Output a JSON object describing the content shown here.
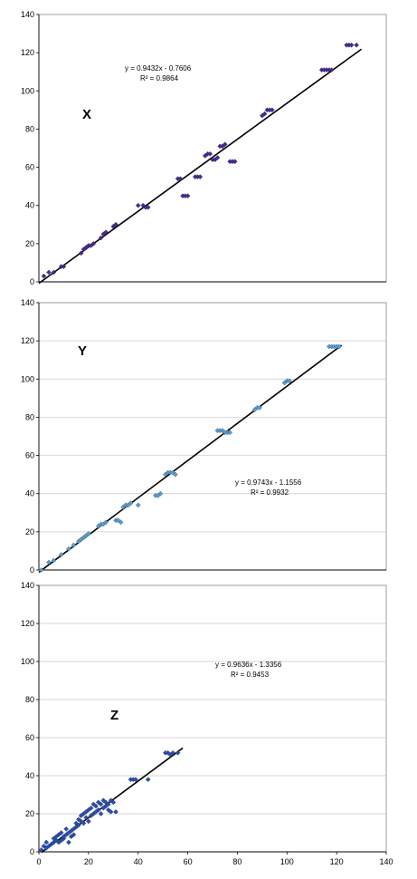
{
  "chart_data": [
    {
      "type": "scatter",
      "panel_label": "X",
      "equation": "y = 0.9432x - 0.7606",
      "r_squared": "R² = 0.9864",
      "xlim": [
        0,
        140
      ],
      "ylim": [
        0,
        140
      ],
      "y_ticks": [
        "0",
        "20",
        "40",
        "60",
        "80",
        "100",
        "120",
        "140"
      ],
      "x_ticks": [],
      "grid": false,
      "marker_color": "#4b2a8c",
      "trendline": {
        "slope": 0.9432,
        "intercept": -0.7606,
        "x_start": 0,
        "x_end": 130
      },
      "points": [
        [
          2,
          3
        ],
        [
          4,
          5
        ],
        [
          6,
          5
        ],
        [
          9,
          8
        ],
        [
          10,
          8
        ],
        [
          17,
          15
        ],
        [
          18,
          17
        ],
        [
          19,
          18
        ],
        [
          20,
          19
        ],
        [
          21,
          19
        ],
        [
          22,
          20
        ],
        [
          25,
          23
        ],
        [
          26,
          25
        ],
        [
          27,
          26
        ],
        [
          30,
          29
        ],
        [
          31,
          30
        ],
        [
          40,
          40
        ],
        [
          42,
          40
        ],
        [
          43,
          39
        ],
        [
          44,
          39
        ],
        [
          56,
          54
        ],
        [
          57,
          54
        ],
        [
          58,
          45
        ],
        [
          59,
          45
        ],
        [
          60,
          45
        ],
        [
          63,
          55
        ],
        [
          64,
          55
        ],
        [
          65,
          55
        ],
        [
          67,
          66
        ],
        [
          68,
          67
        ],
        [
          69,
          67
        ],
        [
          70,
          64
        ],
        [
          71,
          64
        ],
        [
          72,
          65
        ],
        [
          73,
          71
        ],
        [
          74,
          71
        ],
        [
          75,
          72
        ],
        [
          77,
          63
        ],
        [
          78,
          63
        ],
        [
          79,
          63
        ],
        [
          90,
          87
        ],
        [
          91,
          88
        ],
        [
          92,
          90
        ],
        [
          93,
          90
        ],
        [
          94,
          90
        ],
        [
          114,
          111
        ],
        [
          115,
          111
        ],
        [
          116,
          111
        ],
        [
          117,
          111
        ],
        [
          118,
          111
        ],
        [
          124,
          124
        ],
        [
          125,
          124
        ],
        [
          126,
          124
        ],
        [
          128,
          124
        ]
      ]
    },
    {
      "type": "scatter",
      "panel_label": "Y",
      "equation": "y = 0.9743x - 1.1556",
      "r_squared": "R² = 0.9932",
      "xlim": [
        0,
        140
      ],
      "ylim": [
        0,
        140
      ],
      "y_ticks": [
        "0",
        "20",
        "40",
        "60",
        "80",
        "100",
        "120",
        "140"
      ],
      "x_ticks": [],
      "grid": true,
      "marker_color": "#5aa0c8",
      "trendline": {
        "slope": 0.9743,
        "intercept": -1.1556,
        "x_start": 0,
        "x_end": 122
      },
      "points": [
        [
          1,
          0
        ],
        [
          4,
          4
        ],
        [
          6,
          5
        ],
        [
          9,
          8
        ],
        [
          12,
          11
        ],
        [
          14,
          13
        ],
        [
          16,
          15
        ],
        [
          17,
          16
        ],
        [
          18,
          17
        ],
        [
          19,
          18
        ],
        [
          20,
          19
        ],
        [
          24,
          23
        ],
        [
          25,
          24
        ],
        [
          26,
          24
        ],
        [
          27,
          25
        ],
        [
          31,
          26
        ],
        [
          32,
          26
        ],
        [
          33,
          25
        ],
        [
          34,
          33
        ],
        [
          35,
          34
        ],
        [
          36,
          34
        ],
        [
          37,
          35
        ],
        [
          40,
          34
        ],
        [
          47,
          39
        ],
        [
          48,
          39
        ],
        [
          49,
          40
        ],
        [
          51,
          50
        ],
        [
          52,
          51
        ],
        [
          53,
          51
        ],
        [
          54,
          51
        ],
        [
          55,
          50
        ],
        [
          72,
          73
        ],
        [
          73,
          73
        ],
        [
          74,
          73
        ],
        [
          75,
          72
        ],
        [
          76,
          72
        ],
        [
          77,
          72
        ],
        [
          87,
          84
        ],
        [
          88,
          85
        ],
        [
          89,
          85
        ],
        [
          99,
          98
        ],
        [
          100,
          99
        ],
        [
          101,
          99
        ],
        [
          117,
          117
        ],
        [
          118,
          117
        ],
        [
          119,
          117
        ],
        [
          120,
          117
        ],
        [
          121,
          117
        ]
      ]
    },
    {
      "type": "scatter",
      "panel_label": "Z",
      "equation": "y = 0.9636x - 1.3356",
      "r_squared": "R² = 0.9453",
      "xlim": [
        0,
        140
      ],
      "ylim": [
        0,
        140
      ],
      "y_ticks": [
        "0",
        "20",
        "40",
        "60",
        "80",
        "100",
        "120",
        "140"
      ],
      "x_ticks": [
        "0",
        "20",
        "40",
        "60",
        "80",
        "100",
        "120",
        "140"
      ],
      "grid": true,
      "marker_color": "#2c4fa8",
      "trendline": {
        "slope": 0.9636,
        "intercept": -1.3356,
        "x_start": 1,
        "x_end": 58
      },
      "points": [
        [
          1,
          1
        ],
        [
          2,
          3
        ],
        [
          3,
          2
        ],
        [
          3,
          5
        ],
        [
          4,
          3
        ],
        [
          5,
          4
        ],
        [
          6,
          5
        ],
        [
          6,
          7
        ],
        [
          7,
          6
        ],
        [
          7,
          8
        ],
        [
          8,
          5
        ],
        [
          8,
          9
        ],
        [
          9,
          6
        ],
        [
          9,
          10
        ],
        [
          10,
          7
        ],
        [
          10,
          8
        ],
        [
          11,
          9
        ],
        [
          11,
          12
        ],
        [
          12,
          5
        ],
        [
          12,
          10
        ],
        [
          13,
          8
        ],
        [
          13,
          11
        ],
        [
          14,
          12
        ],
        [
          14,
          9
        ],
        [
          15,
          13
        ],
        [
          15,
          15
        ],
        [
          16,
          17
        ],
        [
          16,
          14
        ],
        [
          17,
          16
        ],
        [
          17,
          19
        ],
        [
          18,
          15
        ],
        [
          18,
          20
        ],
        [
          19,
          21
        ],
        [
          19,
          18
        ],
        [
          20,
          22
        ],
        [
          20,
          16
        ],
        [
          21,
          19
        ],
        [
          21,
          23
        ],
        [
          22,
          25
        ],
        [
          22,
          20
        ],
        [
          23,
          21
        ],
        [
          23,
          24
        ],
        [
          24,
          26
        ],
        [
          24,
          22
        ],
        [
          25,
          20
        ],
        [
          25,
          25
        ],
        [
          26,
          27
        ],
        [
          26,
          23
        ],
        [
          27,
          24
        ],
        [
          27,
          26
        ],
        [
          28,
          25
        ],
        [
          28,
          22
        ],
        [
          29,
          27
        ],
        [
          29,
          21
        ],
        [
          30,
          26
        ],
        [
          31,
          21
        ],
        [
          37,
          38
        ],
        [
          38,
          38
        ],
        [
          39,
          38
        ],
        [
          44,
          38
        ],
        [
          51,
          52
        ],
        [
          52,
          52
        ],
        [
          53,
          51
        ],
        [
          54,
          52
        ],
        [
          56,
          52
        ]
      ]
    }
  ]
}
